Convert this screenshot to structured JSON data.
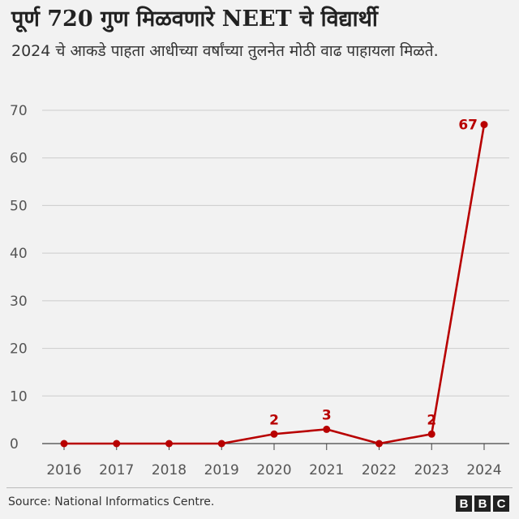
{
  "header": {
    "title": "पूर्ण 720 गुण मिळवणारे NEET चे विद्यार्थी",
    "subtitle": "2024 चे आकडे पाहता आधीच्या वर्षांच्या तुलनेत मोठी वाढ पाहायला मिळते."
  },
  "footer": {
    "source": "Source: National Informatics Centre.",
    "logo_letters": [
      "B",
      "B",
      "C"
    ]
  },
  "chart_data": {
    "type": "line",
    "categories": [
      "2016",
      "2017",
      "2018",
      "2019",
      "2020",
      "2021",
      "2022",
      "2023",
      "2024"
    ],
    "series": [
      {
        "values": [
          0,
          0,
          0,
          0,
          2,
          3,
          0,
          2,
          67
        ],
        "color": "#b80000"
      }
    ],
    "data_labels": [
      {
        "index": 4,
        "text": "2"
      },
      {
        "index": 5,
        "text": "3"
      },
      {
        "index": 7,
        "text": "2"
      },
      {
        "index": 8,
        "text": "67"
      }
    ],
    "ylim": [
      0,
      70
    ],
    "yticks": [
      0,
      10,
      20,
      30,
      40,
      50,
      60,
      70
    ],
    "grid": true,
    "xlabel": "",
    "ylabel": ""
  }
}
